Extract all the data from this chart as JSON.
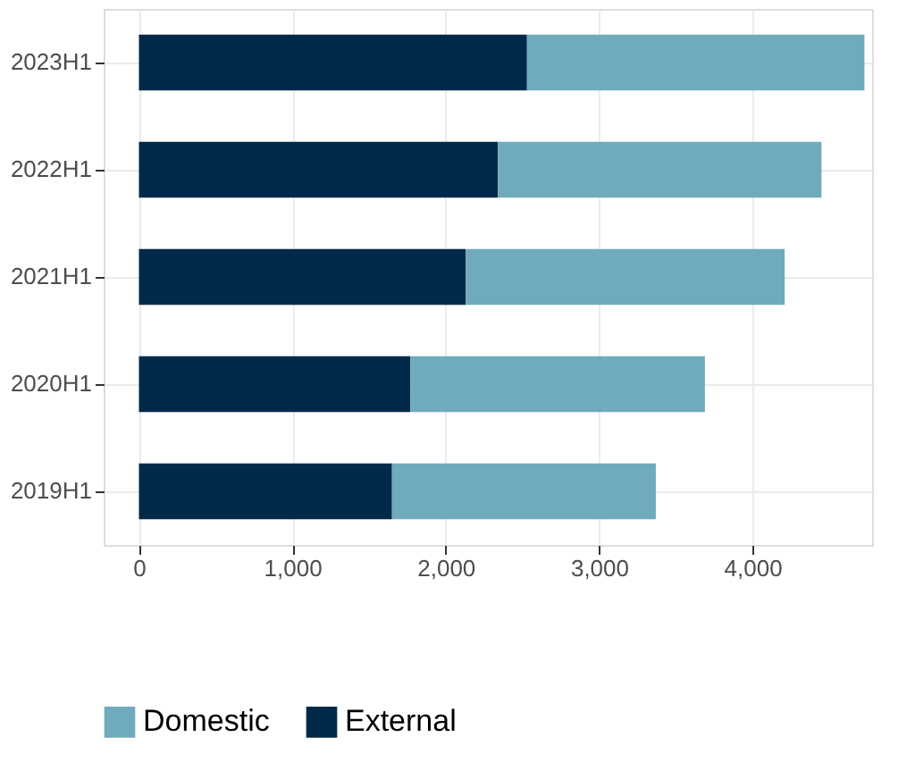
{
  "chart_data": {
    "type": "bar",
    "orientation": "horizontal",
    "stacked": true,
    "categories": [
      "2023H1",
      "2022H1",
      "2021H1",
      "2020H1",
      "2019H1"
    ],
    "series": [
      {
        "name": "External",
        "color": "#012a4a",
        "values": [
          2530,
          2340,
          2130,
          1770,
          1650
        ]
      },
      {
        "name": "Domestic",
        "color": "#6fabbd",
        "values": [
          2200,
          2110,
          2080,
          1920,
          1720
        ]
      }
    ],
    "xlim": [
      -230,
      4780
    ],
    "xticks": [
      {
        "value": 0,
        "label": "0"
      },
      {
        "value": 1000,
        "label": "1,000"
      },
      {
        "value": 2000,
        "label": "2,000"
      },
      {
        "value": 3000,
        "label": "3,000"
      },
      {
        "value": 4000,
        "label": "4,000"
      }
    ],
    "grid": true,
    "legend": "bottom"
  }
}
